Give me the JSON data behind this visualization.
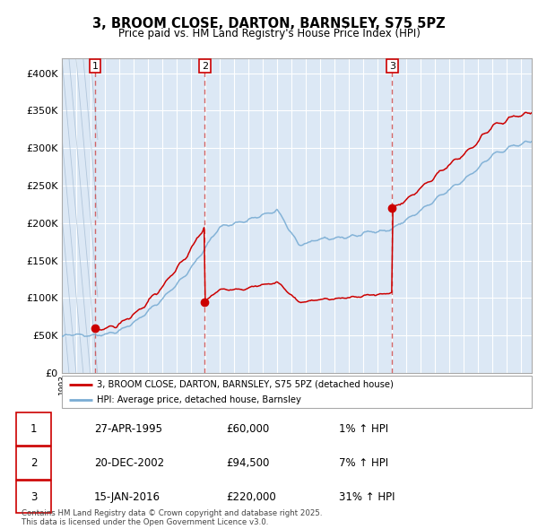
{
  "title": "3, BROOM CLOSE, DARTON, BARNSLEY, S75 5PZ",
  "subtitle": "Price paid vs. HM Land Registry's House Price Index (HPI)",
  "ylim": [
    0,
    420000
  ],
  "yticks": [
    0,
    50000,
    100000,
    150000,
    200000,
    250000,
    300000,
    350000,
    400000
  ],
  "sale_dates": [
    1995.32,
    2002.97,
    2016.04
  ],
  "sale_prices": [
    60000,
    94500,
    220000
  ],
  "sale_labels": [
    "1",
    "2",
    "3"
  ],
  "red_line_color": "#cc0000",
  "blue_line_color": "#7aadd4",
  "legend_red_label": "3, BROOM CLOSE, DARTON, BARNSLEY, S75 5PZ (detached house)",
  "legend_blue_label": "HPI: Average price, detached house, Barnsley",
  "table_rows": [
    [
      "1",
      "27-APR-1995",
      "£60,000",
      "1% ↑ HPI"
    ],
    [
      "2",
      "20-DEC-2002",
      "£94,500",
      "7% ↑ HPI"
    ],
    [
      "3",
      "15-JAN-2016",
      "£220,000",
      "31% ↑ HPI"
    ]
  ],
  "footer": "Contains HM Land Registry data © Crown copyright and database right 2025.\nThis data is licensed under the Open Government Licence v3.0.",
  "xmin": 1993.0,
  "xmax": 2025.75,
  "plot_bg": "#dce8f5",
  "hatch_end": 1995.5
}
